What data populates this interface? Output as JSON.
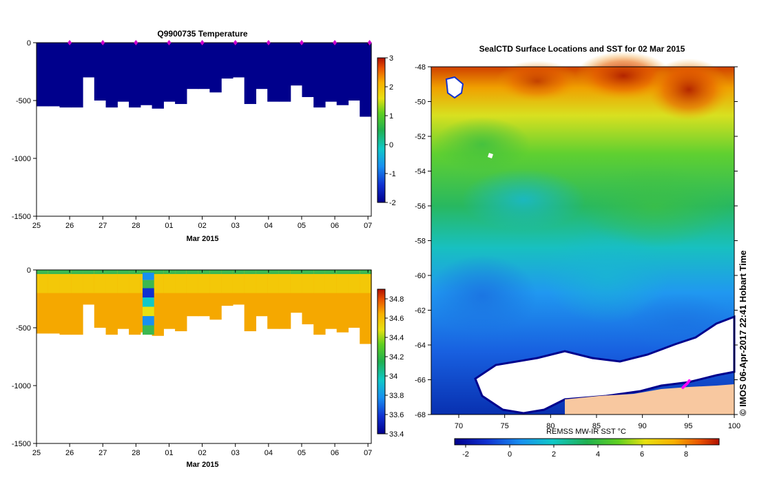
{
  "figure": {
    "side_label": "© IMOS 06-Apr-2017 22:41 Hobart Time"
  },
  "colors": {
    "profile_temp": "#00008c",
    "sal_deep": "#f5a800",
    "sal_shallow": "#f3c808",
    "sal_surface": "#3cb850",
    "ice": "#ffffff",
    "land": "#f8c8a0",
    "track": "#ff00ff",
    "markers": "#cc00cc"
  },
  "chart_data": [
    {
      "id": "temperature",
      "type": "heatmap",
      "title": "Q9900735  Temperature",
      "xlabel": "Mar 2015",
      "ylabel": "",
      "x_ticks": [
        "25",
        "26",
        "27",
        "28",
        "01",
        "02",
        "03",
        "04",
        "05",
        "06",
        "07"
      ],
      "x_range_days": [
        0,
        10.1
      ],
      "ylim": [
        -1500,
        0
      ],
      "y_ticks": [
        0,
        -500,
        -1000,
        -1500
      ],
      "colorbar": {
        "min": -2,
        "max": 3,
        "ticks": [
          3,
          2,
          1,
          0,
          -1,
          -2
        ]
      },
      "markers_days": [
        1,
        2,
        3,
        4,
        5,
        6,
        7,
        8,
        9,
        10.05
      ],
      "profile_max_depth": [
        -550,
        -550,
        -560,
        -560,
        -300,
        -500,
        -560,
        -510,
        -560,
        -540,
        -570,
        -510,
        -530,
        -400,
        -400,
        -430,
        -310,
        -300,
        -530,
        -400,
        -510,
        -510,
        -370,
        -470,
        -560,
        -510,
        -540,
        -500,
        -640
      ]
    },
    {
      "id": "salinity",
      "type": "heatmap",
      "title": "",
      "xlabel": "Mar 2015",
      "ylabel": "",
      "x_ticks": [
        "25",
        "26",
        "27",
        "28",
        "01",
        "02",
        "03",
        "04",
        "05",
        "06",
        "07"
      ],
      "x_range_days": [
        0,
        10.1
      ],
      "ylim": [
        -1500,
        0
      ],
      "y_ticks": [
        0,
        -500,
        -1000,
        -1500
      ],
      "colorbar": {
        "min": 33.4,
        "max": 34.9,
        "ticks": [
          34.8,
          34.6,
          34.4,
          34.2,
          34,
          33.8,
          33.6,
          33.4
        ]
      },
      "profile_max_depth": [
        -550,
        -550,
        -560,
        -560,
        -300,
        -500,
        -560,
        -510,
        -560,
        -540,
        -570,
        -510,
        -530,
        -400,
        -400,
        -430,
        -310,
        -300,
        -530,
        -400,
        -510,
        -510,
        -370,
        -470,
        -560,
        -510,
        -540,
        -500,
        -640
      ]
    },
    {
      "id": "sst_map",
      "type": "heatmap",
      "title": "SealCTD Surface Locations and SST for 02 Mar 2015",
      "xlabel": "",
      "ylabel": "",
      "x_ticks": [
        70,
        75,
        80,
        85,
        90,
        95,
        100
      ],
      "xlim": [
        67,
        100
      ],
      "y_ticks": [
        -48,
        -50,
        -52,
        -54,
        -56,
        -58,
        -60,
        -62,
        -64,
        -66,
        -68
      ],
      "ylim": [
        -68,
        -48
      ],
      "colorbar": {
        "label": "REMSS MW-IR SST °C",
        "min": -2.5,
        "max": 9.5,
        "ticks": [
          -2,
          0,
          2,
          4,
          6,
          8
        ]
      },
      "track_points": [
        [
          94.4,
          -66.45
        ],
        [
          94.6,
          -66.35
        ],
        [
          94.9,
          -66.2
        ],
        [
          95.1,
          -66.05
        ]
      ]
    }
  ]
}
